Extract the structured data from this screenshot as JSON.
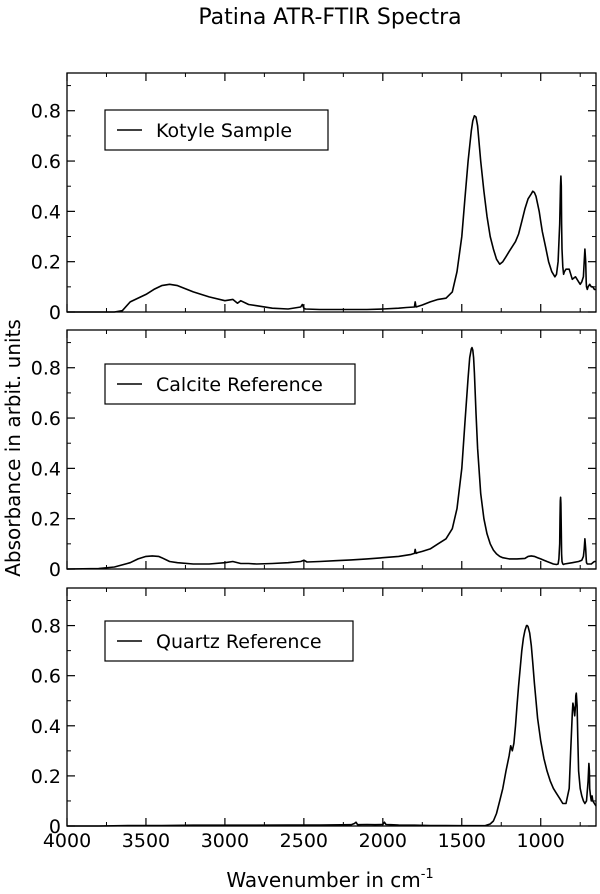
{
  "figure": {
    "title": "Patina ATR-FTIR Spectra",
    "ylabel": "Absorbance in arbit. units",
    "xlabel_main": "Wavenumber in cm",
    "xlabel_sup": "-1"
  },
  "chart_data": [
    {
      "type": "line",
      "legend": "Kotyle Sample",
      "xlim": [
        4000,
        650
      ],
      "ylim": [
        0,
        0.95
      ],
      "xticks": [
        4000,
        3500,
        3000,
        2500,
        2000,
        1500,
        1000
      ],
      "yticks": [
        0,
        0.2,
        0.4,
        0.6,
        0.8
      ],
      "xtick_labels": [
        "4000",
        "3500",
        "3000",
        "2500",
        "2000",
        "1500",
        "1000"
      ],
      "ytick_labels": [
        "0",
        "0.2",
        "0.4",
        "0.6",
        "0.8"
      ],
      "grid": false,
      "legend_position": "top-left",
      "series": [
        {
          "x": [
            4000,
            3700,
            3650,
            3600,
            3500,
            3450,
            3400,
            3350,
            3300,
            3200,
            3100,
            3000,
            2950,
            2920,
            2900,
            2850,
            2800,
            2700,
            2600,
            2520,
            2510,
            2500,
            2490,
            2400,
            2300,
            2200,
            2100,
            2000,
            1900,
            1850,
            1800,
            1795,
            1790,
            1780,
            1750,
            1700,
            1650,
            1600,
            1560,
            1530,
            1500,
            1480,
            1460,
            1440,
            1430,
            1420,
            1410,
            1400,
            1380,
            1360,
            1340,
            1320,
            1300,
            1280,
            1260,
            1240,
            1220,
            1200,
            1180,
            1160,
            1140,
            1120,
            1100,
            1080,
            1060,
            1050,
            1040,
            1030,
            1020,
            1010,
            1000,
            990,
            970,
            950,
            930,
            910,
            900,
            890,
            880,
            875,
            872,
            870,
            868,
            865,
            860,
            855,
            850,
            840,
            820,
            800,
            780,
            760,
            750,
            740,
            730,
            725,
            720,
            715,
            712,
            710,
            705,
            700,
            690,
            680,
            670,
            660,
            650
          ],
          "y": [
            0,
            0,
            0.005,
            0.04,
            0.07,
            0.09,
            0.105,
            0.11,
            0.105,
            0.08,
            0.06,
            0.045,
            0.05,
            0.035,
            0.045,
            0.03,
            0.025,
            0.015,
            0.012,
            0.02,
            0.03,
            0.015,
            0.012,
            0.01,
            0.01,
            0.01,
            0.01,
            0.012,
            0.015,
            0.018,
            0.02,
            0.04,
            0.02,
            0.022,
            0.028,
            0.04,
            0.05,
            0.055,
            0.08,
            0.16,
            0.3,
            0.45,
            0.6,
            0.72,
            0.76,
            0.78,
            0.775,
            0.74,
            0.6,
            0.48,
            0.38,
            0.3,
            0.25,
            0.21,
            0.19,
            0.2,
            0.22,
            0.24,
            0.26,
            0.28,
            0.31,
            0.36,
            0.41,
            0.45,
            0.47,
            0.48,
            0.475,
            0.46,
            0.43,
            0.4,
            0.36,
            0.32,
            0.26,
            0.2,
            0.16,
            0.14,
            0.15,
            0.2,
            0.35,
            0.5,
            0.54,
            0.5,
            0.35,
            0.25,
            0.18,
            0.15,
            0.16,
            0.17,
            0.17,
            0.13,
            0.14,
            0.12,
            0.11,
            0.12,
            0.14,
            0.2,
            0.25,
            0.2,
            0.12,
            0.1,
            0.09,
            0.1,
            0.11,
            0.1,
            0.1,
            0.09,
            0.09
          ]
        }
      ]
    },
    {
      "type": "line",
      "legend": "Calcite Reference",
      "xlim": [
        4000,
        650
      ],
      "ylim": [
        0,
        0.95
      ],
      "xticks": [
        4000,
        3500,
        3000,
        2500,
        2000,
        1500,
        1000
      ],
      "yticks": [
        0,
        0.2,
        0.4,
        0.6,
        0.8
      ],
      "xtick_labels": [
        "4000",
        "3500",
        "3000",
        "2500",
        "2000",
        "1500",
        "1000"
      ],
      "ytick_labels": [
        "0",
        "0.2",
        "0.4",
        "0.6",
        "0.8"
      ],
      "grid": false,
      "legend_position": "top-left",
      "series": [
        {
          "x": [
            4000,
            3800,
            3700,
            3600,
            3550,
            3500,
            3460,
            3420,
            3400,
            3350,
            3300,
            3200,
            3100,
            3000,
            2950,
            2900,
            2850,
            2800,
            2700,
            2600,
            2520,
            2500,
            2480,
            2400,
            2300,
            2200,
            2100,
            2000,
            1900,
            1820,
            1800,
            1795,
            1790,
            1780,
            1750,
            1700,
            1650,
            1600,
            1560,
            1530,
            1500,
            1480,
            1460,
            1450,
            1440,
            1435,
            1430,
            1425,
            1420,
            1410,
            1400,
            1380,
            1360,
            1340,
            1320,
            1300,
            1280,
            1260,
            1240,
            1200,
            1150,
            1100,
            1080,
            1060,
            1040,
            1020,
            1000,
            980,
            960,
            940,
            920,
            900,
            890,
            885,
            880,
            878,
            876,
            874,
            872,
            870,
            868,
            865,
            860,
            855,
            850,
            800,
            760,
            740,
            730,
            725,
            720,
            715,
            712,
            710,
            705,
            700,
            690,
            680,
            670,
            660,
            650
          ],
          "y": [
            0,
            0.002,
            0.008,
            0.025,
            0.04,
            0.05,
            0.052,
            0.05,
            0.045,
            0.03,
            0.025,
            0.02,
            0.02,
            0.025,
            0.03,
            0.022,
            0.022,
            0.02,
            0.022,
            0.025,
            0.03,
            0.035,
            0.028,
            0.03,
            0.033,
            0.036,
            0.04,
            0.045,
            0.05,
            0.058,
            0.062,
            0.078,
            0.062,
            0.065,
            0.07,
            0.08,
            0.1,
            0.12,
            0.16,
            0.24,
            0.4,
            0.58,
            0.76,
            0.84,
            0.875,
            0.88,
            0.87,
            0.84,
            0.78,
            0.62,
            0.48,
            0.3,
            0.2,
            0.14,
            0.1,
            0.075,
            0.06,
            0.05,
            0.045,
            0.04,
            0.04,
            0.042,
            0.05,
            0.052,
            0.05,
            0.045,
            0.04,
            0.035,
            0.03,
            0.025,
            0.02,
            0.018,
            0.02,
            0.04,
            0.1,
            0.2,
            0.27,
            0.285,
            0.26,
            0.15,
            0.06,
            0.03,
            0.02,
            0.018,
            0.02,
            0.025,
            0.03,
            0.035,
            0.05,
            0.08,
            0.12,
            0.08,
            0.04,
            0.025,
            0.02,
            0.02,
            0.02,
            0.02,
            0.025,
            0.03,
            0.03
          ]
        }
      ]
    },
    {
      "type": "line",
      "legend": "Quartz Reference",
      "xlim": [
        4000,
        650
      ],
      "ylim": [
        0,
        0.95
      ],
      "xticks": [
        4000,
        3500,
        3000,
        2500,
        2000,
        1500,
        1000
      ],
      "yticks": [
        0,
        0.2,
        0.4,
        0.6,
        0.8
      ],
      "xtick_labels": [
        "4000",
        "3500",
        "3000",
        "2500",
        "2000",
        "1500",
        "1000"
      ],
      "ytick_labels": [
        "0",
        "0.2",
        "0.4",
        "0.6",
        "0.8"
      ],
      "grid": false,
      "legend_position": "top-left",
      "series": [
        {
          "x": [
            4000,
            3800,
            3600,
            3400,
            3200,
            3000,
            2800,
            2600,
            2400,
            2200,
            2180,
            2170,
            2160,
            2100,
            2050,
            2000,
            1990,
            1980,
            1950,
            1900,
            1800,
            1700,
            1600,
            1500,
            1400,
            1350,
            1320,
            1300,
            1280,
            1260,
            1240,
            1220,
            1200,
            1190,
            1180,
            1170,
            1160,
            1150,
            1140,
            1130,
            1120,
            1110,
            1100,
            1090,
            1085,
            1080,
            1070,
            1060,
            1050,
            1040,
            1030,
            1020,
            1000,
            980,
            960,
            940,
            920,
            900,
            880,
            860,
            840,
            820,
            810,
            800,
            796,
            790,
            785,
            780,
            778,
            775,
            770,
            765,
            760,
            750,
            740,
            730,
            720,
            710,
            700,
            695,
            692,
            690,
            685,
            680,
            675,
            670,
            660,
            650
          ],
          "y": [
            0,
            0,
            0.002,
            0.002,
            0.003,
            0.003,
            0.003,
            0.004,
            0.004,
            0.005,
            0.01,
            0.015,
            0.005,
            0.006,
            0.005,
            0.006,
            0.015,
            0.006,
            0.005,
            0.004,
            0.003,
            0.002,
            0.002,
            0.001,
            0.001,
            0.002,
            0.008,
            0.02,
            0.05,
            0.1,
            0.15,
            0.22,
            0.28,
            0.32,
            0.3,
            0.33,
            0.4,
            0.48,
            0.56,
            0.63,
            0.7,
            0.75,
            0.78,
            0.8,
            0.8,
            0.795,
            0.77,
            0.72,
            0.65,
            0.57,
            0.5,
            0.43,
            0.34,
            0.27,
            0.22,
            0.18,
            0.15,
            0.13,
            0.11,
            0.09,
            0.09,
            0.15,
            0.3,
            0.45,
            0.49,
            0.47,
            0.44,
            0.48,
            0.52,
            0.53,
            0.48,
            0.35,
            0.22,
            0.15,
            0.12,
            0.1,
            0.09,
            0.1,
            0.18,
            0.25,
            0.22,
            0.15,
            0.12,
            0.1,
            0.12,
            0.1,
            0.09,
            0.08
          ]
        }
      ]
    }
  ]
}
